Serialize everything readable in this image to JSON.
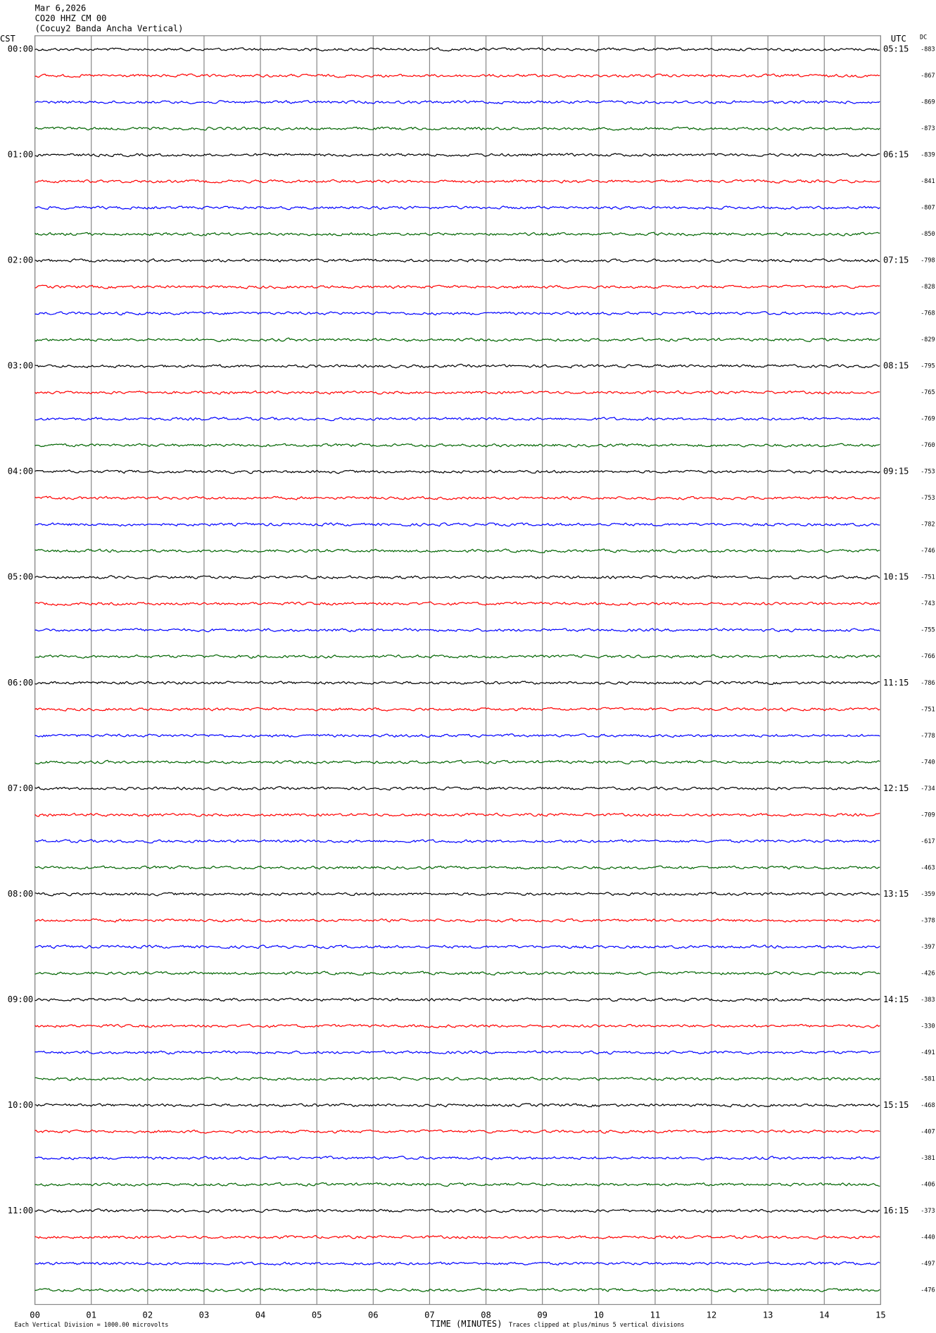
{
  "chart_data": {
    "type": "helicorder",
    "title_lines": [
      "Mar 6,2026",
      "CO20 HHZ CM 00",
      "(Cocuy2 Banda Ancha Vertical)"
    ],
    "left_axis_title": "CST",
    "right_axis_title": "UTC",
    "dc_title": "DC",
    "left_labels": [
      "00:00",
      "01:00",
      "02:00",
      "03:00",
      "04:00",
      "05:00",
      "06:00",
      "07:00",
      "08:00",
      "09:00",
      "10:00",
      "11:00"
    ],
    "right_labels": [
      "05:15",
      "06:15",
      "07:15",
      "08:15",
      "09:15",
      "10:15",
      "11:15",
      "12:15",
      "13:15",
      "14:15",
      "15:15",
      "16:15"
    ],
    "dc_values": [
      -883,
      -867,
      -869,
      -873,
      -839,
      -841,
      -807,
      -850,
      -798,
      -828,
      -768,
      -829,
      -795,
      -765,
      -769,
      -760,
      -753,
      -753,
      -782,
      -746,
      -751,
      -743,
      -755,
      -766,
      -786,
      -751,
      -778,
      -740,
      -734,
      -709,
      -617,
      -463,
      -359,
      -378,
      -397,
      -426,
      -383,
      -330,
      -491,
      -581,
      -468,
      -407,
      -381,
      -406,
      -373,
      -440,
      -497,
      -476
    ],
    "trace_colors": [
      "#000000",
      "#ff0000",
      "#0000ff",
      "#006400"
    ],
    "xlabel": "TIME (MINUTES)",
    "xlim": [
      0,
      15
    ],
    "xticks": [
      {
        "value": 0,
        "label": "00"
      },
      {
        "value": 1,
        "label": "01"
      },
      {
        "value": 2,
        "label": "02"
      },
      {
        "value": 3,
        "label": "03"
      },
      {
        "value": 4,
        "label": "04"
      },
      {
        "value": 5,
        "label": "05"
      },
      {
        "value": 6,
        "label": "06"
      },
      {
        "value": 7,
        "label": "07"
      },
      {
        "value": 8,
        "label": "08"
      },
      {
        "value": 9,
        "label": "09"
      },
      {
        "value": 10,
        "label": "10"
      },
      {
        "value": 11,
        "label": "11"
      },
      {
        "value": 12,
        "label": "12"
      },
      {
        "value": 13,
        "label": "13"
      },
      {
        "value": 14,
        "label": "14"
      },
      {
        "value": 15,
        "label": "15"
      }
    ],
    "footer_left": "Each Vertical Division = 1000.00 microvolts",
    "footer_right": "Traces clipped at plus/minus 5 vertical divisions"
  }
}
